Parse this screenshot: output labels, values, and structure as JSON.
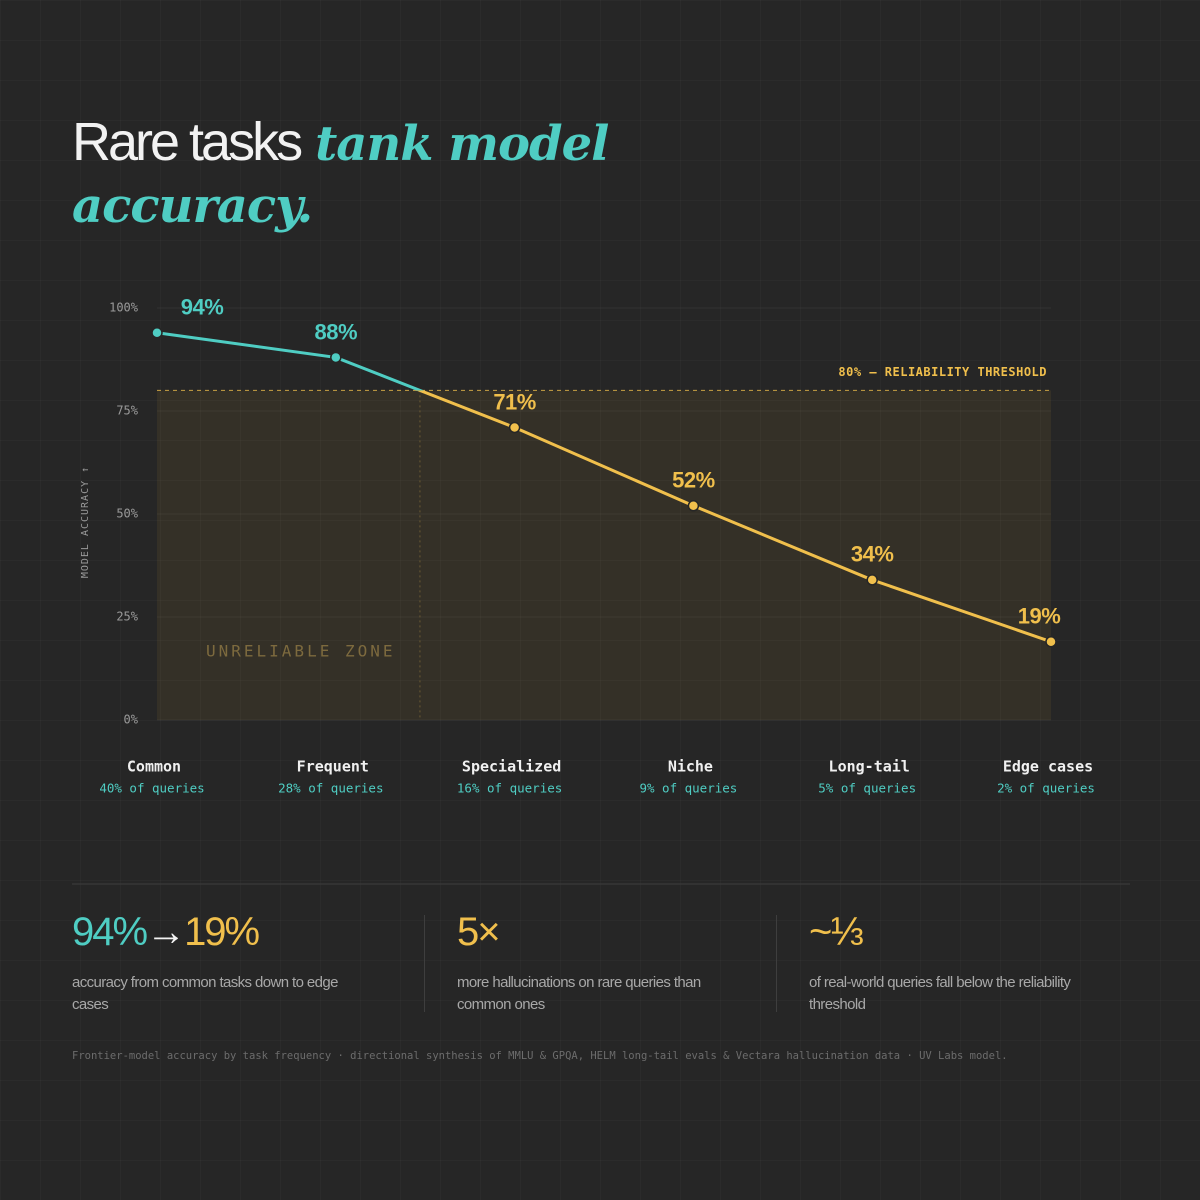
{
  "title": {
    "plain": "Rare tasks",
    "emphasis": "tank model accuracy."
  },
  "chart_data": {
    "type": "line",
    "categories": [
      "Common",
      "Frequent",
      "Specialized",
      "Niche",
      "Long-tail",
      "Edge cases"
    ],
    "category_subtitles": [
      "40% of queries",
      "28% of queries",
      "16% of queries",
      "9% of queries",
      "5% of queries",
      "2% of queries"
    ],
    "values": [
      94,
      88,
      71,
      52,
      34,
      19
    ],
    "value_labels": [
      "94%",
      "88%",
      "71%",
      "52%",
      "34%",
      "19%"
    ],
    "ylim": [
      0,
      100
    ],
    "yticks": [
      {
        "value": 0,
        "label": "0%"
      },
      {
        "value": 25,
        "label": "25%"
      },
      {
        "value": 50,
        "label": "50%"
      },
      {
        "value": 75,
        "label": "75%"
      },
      {
        "value": 100,
        "label": "100%"
      }
    ],
    "ylabel": "MODEL ACCURACY ↑",
    "threshold": 80,
    "threshold_label": "80% — RELIABILITY THRESHOLD",
    "zone_label": "UNRELIABLE ZONE",
    "colors": {
      "above": "#4fcdc3",
      "below": "#f0bf4c"
    },
    "grid": true
  },
  "stats": [
    {
      "from": "94%",
      "arrow": "→",
      "to": "19%",
      "text": "accuracy from common tasks down to edge cases"
    },
    {
      "value": "5×",
      "text": "more hallucinations on rare queries than common ones"
    },
    {
      "value": "~⅓",
      "text": "of real-world queries fall below the reliability threshold"
    }
  ],
  "footnote": "Frontier-model accuracy by task frequency · directional synthesis of MMLU & GPQA, HELM long-tail evals & Vectara hallucination data · UV Labs model."
}
